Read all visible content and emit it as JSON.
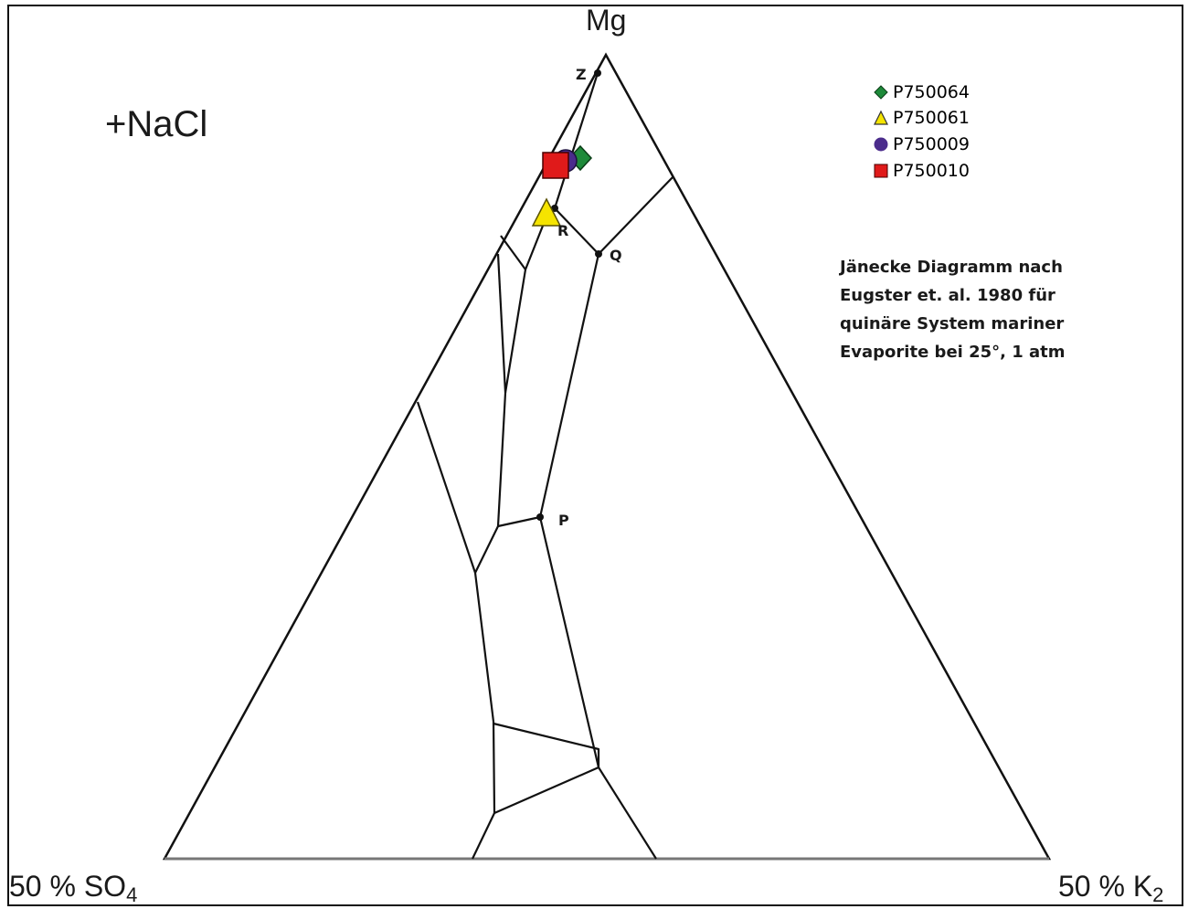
{
  "diagram": {
    "vertices": {
      "top": "Mg",
      "bottom_left": "50 % SO",
      "bottom_left_sub": "4",
      "bottom_right": "50 % K",
      "bottom_right_sub": "2"
    },
    "condition_label": "+NaCl",
    "points": {
      "z": "Z",
      "r": "R",
      "q": "Q",
      "p": "P"
    },
    "legend": [
      {
        "label": "P750064",
        "marker": "diamond",
        "color": "#1e8a3a"
      },
      {
        "label": "P750061",
        "marker": "triangle",
        "color": "#f5e400"
      },
      {
        "label": "P750009",
        "marker": "circle",
        "color": "#4b2c8c"
      },
      {
        "label": "P750010",
        "marker": "square",
        "color": "#e01a1a"
      }
    ],
    "description": [
      "Jänecke Diagramm nach",
      "Eugster et. al. 1980 für",
      "quinäre System mariner",
      "Evaporite bei 25°, 1 atm"
    ]
  }
}
